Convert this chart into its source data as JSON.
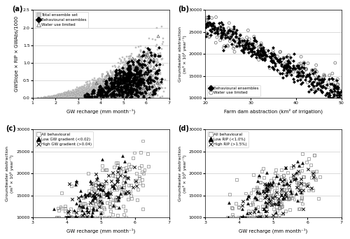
{
  "panel_a": {
    "label": "(a)",
    "xlabel": "GW recharge (mm month⁻¹)",
    "ylabel": "GWSlope × RIP × GWAbs/1000",
    "xlim": [
      1,
      7
    ],
    "ylim": [
      0,
      2.5
    ],
    "xticks": [
      1,
      2,
      3,
      4,
      5,
      6,
      7
    ],
    "yticks": [
      0,
      0.5,
      1.0,
      1.5,
      2.0,
      2.5
    ],
    "legend": [
      "Total ensemble set",
      "Behavioural ensembles",
      "Water use limited"
    ]
  },
  "panel_b": {
    "label": "(b)",
    "xlabel": "Farm dam abstraction (km² of irrigation)",
    "ylabel": "Groundwater abstraction\n(m³ × 10³ year⁻¹)",
    "xlim": [
      20,
      50
    ],
    "ylim": [
      10000,
      30000
    ],
    "xticks": [
      20,
      30,
      40,
      50
    ],
    "yticks": [
      10000,
      15000,
      20000,
      25000,
      30000
    ],
    "legend": [
      "Behavioural ensembles",
      "Water use limited"
    ]
  },
  "panel_c": {
    "label": "(c)",
    "xlabel": "GW recharge (mm month⁻¹)",
    "ylabel": "Groundwater abstraction\n(m³ × 10³ year⁻¹)",
    "xlim": [
      3,
      7
    ],
    "ylim": [
      10000,
      30000
    ],
    "xticks": [
      3,
      4,
      5,
      6,
      7
    ],
    "yticks": [
      10000,
      15000,
      20000,
      25000,
      30000
    ],
    "legend": [
      "All behavioural",
      "Low GW gradient (<0.02)",
      "High GW gradient (>0.04)"
    ]
  },
  "panel_d": {
    "label": "(d)",
    "xlabel": "GW recharge (mm month⁻¹)",
    "ylabel": "Groundwater abstraction\n(m³ × 10³ year⁻¹)",
    "xlim": [
      3,
      7
    ],
    "ylim": [
      10000,
      30000
    ],
    "xticks": [
      3,
      4,
      5,
      6,
      7
    ],
    "yticks": [
      10000,
      15000,
      20000,
      25000,
      30000
    ],
    "legend": [
      "All behavioural",
      "Low RIP (<1.0%)",
      "High RIP (>1.5%)"
    ]
  }
}
